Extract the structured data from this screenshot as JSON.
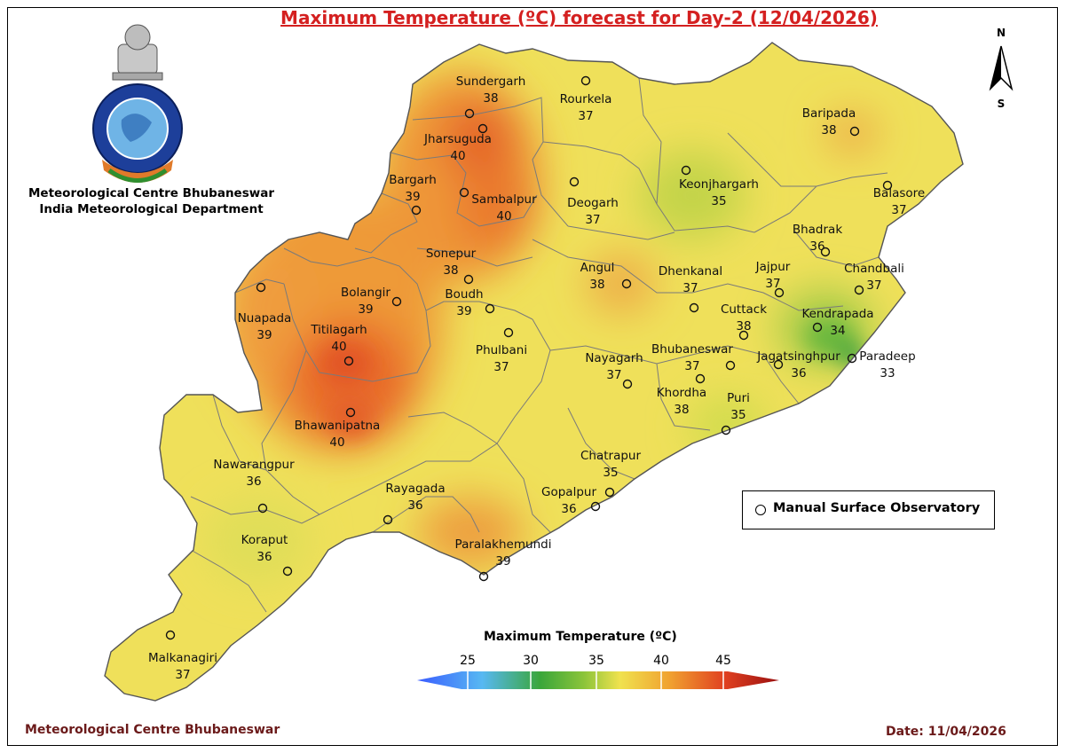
{
  "title": "Maximum Temperature (ºC) forecast for Day-2 (12/04/2026)",
  "organization": {
    "line1": "Meteorological Centre Bhubaneswar",
    "line2": "India Meteorological Department"
  },
  "footer": {
    "left": "Meteorological Centre Bhubaneswar",
    "right": "Date: 11/04/2026"
  },
  "legend": {
    "symbol_label": "Manual Surface Observatory"
  },
  "colorbar": {
    "title": "Maximum Temperature (ºC)",
    "ticks": [
      "25",
      "30",
      "35",
      "40",
      "45"
    ],
    "colors": [
      "#3a5cff",
      "#57b8f2",
      "#3aa63a",
      "#8bc43a",
      "#f0e24e",
      "#f0a030",
      "#e04020",
      "#9a1010"
    ]
  },
  "compass": {
    "north": "N",
    "south": "S"
  },
  "stations": [
    {
      "name": "Sundergarh",
      "temp": "38"
    },
    {
      "name": "Rourkela",
      "temp": "37"
    },
    {
      "name": "Jharsuguda",
      "temp": "40"
    },
    {
      "name": "Bargarh",
      "temp": "39"
    },
    {
      "name": "Sambalpur",
      "temp": "40"
    },
    {
      "name": "Deogarh",
      "temp": "37"
    },
    {
      "name": "Keonjhargarh",
      "temp": "35"
    },
    {
      "name": "Baripada",
      "temp": "38"
    },
    {
      "name": "Balasore",
      "temp": "37"
    },
    {
      "name": "Bhadrak",
      "temp": "36"
    },
    {
      "name": "Chandbali",
      "temp": "37"
    },
    {
      "name": "Sonepur",
      "temp": "38"
    },
    {
      "name": "Angul",
      "temp": "38"
    },
    {
      "name": "Dhenkanal",
      "temp": "37"
    },
    {
      "name": "Jajpur",
      "temp": "37"
    },
    {
      "name": "Bolangir",
      "temp": "39"
    },
    {
      "name": "Boudh",
      "temp": "39"
    },
    {
      "name": "Kendrapada",
      "temp": "34"
    },
    {
      "name": "Nuapada",
      "temp": "39"
    },
    {
      "name": "Cuttack",
      "temp": "38"
    },
    {
      "name": "Titilagarh",
      "temp": "40"
    },
    {
      "name": "Phulbani",
      "temp": "37"
    },
    {
      "name": "Nayagarh",
      "temp": "37"
    },
    {
      "name": "Bhubaneswar",
      "temp": "37"
    },
    {
      "name": "Jagatsinghpur",
      "temp": "36"
    },
    {
      "name": "Paradeep",
      "temp": "33"
    },
    {
      "name": "Khordha",
      "temp": "38"
    },
    {
      "name": "Puri",
      "temp": "35"
    },
    {
      "name": "Bhawanipatna",
      "temp": "40"
    },
    {
      "name": "Nawarangpur",
      "temp": "36"
    },
    {
      "name": "Chatrapur",
      "temp": "35"
    },
    {
      "name": "Rayagada",
      "temp": "36"
    },
    {
      "name": "Gopalpur",
      "temp": "36"
    },
    {
      "name": "Koraput",
      "temp": "36"
    },
    {
      "name": "Paralakhemundi",
      "temp": "39"
    },
    {
      "name": "Malkanagiri",
      "temp": "37"
    }
  ]
}
